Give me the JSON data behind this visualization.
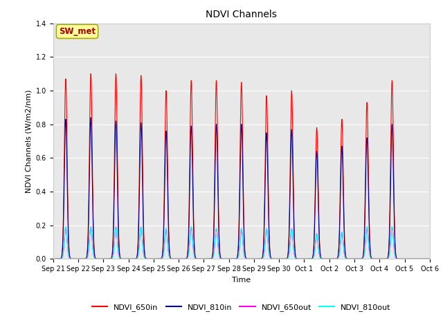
{
  "title": "NDVI Channels",
  "xlabel": "Time",
  "ylabel": "NDVI Channels (W/m2/nm)",
  "ylim": [
    0.0,
    1.4
  ],
  "annotation_text": "SW_met",
  "x_tick_labels": [
    "Sep 21",
    "Sep 22",
    "Sep 23",
    "Sep 24",
    "Sep 25",
    "Sep 26",
    "Sep 27",
    "Sep 28",
    "Sep 29",
    "Sep 30",
    "Oct 1",
    "Oct 2",
    "Oct 3",
    "Oct 4",
    "Oct 5",
    "Oct 6"
  ],
  "peak_650in": [
    1.07,
    1.1,
    1.1,
    1.09,
    1.0,
    1.06,
    1.06,
    1.05,
    0.97,
    1.0,
    0.78,
    0.83,
    0.93,
    1.06
  ],
  "peak_810in": [
    0.83,
    0.84,
    0.82,
    0.81,
    0.76,
    0.79,
    0.8,
    0.8,
    0.75,
    0.77,
    0.64,
    0.67,
    0.72,
    0.8
  ],
  "peak_650out": [
    0.19,
    0.19,
    0.19,
    0.19,
    0.18,
    0.19,
    0.18,
    0.18,
    0.18,
    0.18,
    0.15,
    0.16,
    0.19,
    0.19
  ],
  "peak_810out": [
    0.19,
    0.19,
    0.19,
    0.19,
    0.18,
    0.19,
    0.18,
    0.18,
    0.18,
    0.18,
    0.15,
    0.16,
    0.19,
    0.19
  ],
  "color_650in": "#ff0000",
  "color_810in": "#00008b",
  "color_650out": "#ff00ff",
  "color_810out": "#00ffff",
  "bg_color": "#e8e8e8",
  "legend_labels": [
    "NDVI_650in",
    "NDVI_810in",
    "NDVI_650out",
    "NDVI_810out"
  ],
  "annotation_bg": "#ffff99",
  "annotation_fg": "#aa0000",
  "annotation_edge": "#aaaa00",
  "title_fontsize": 10,
  "axis_label_fontsize": 8,
  "tick_fontsize": 7,
  "legend_fontsize": 8
}
